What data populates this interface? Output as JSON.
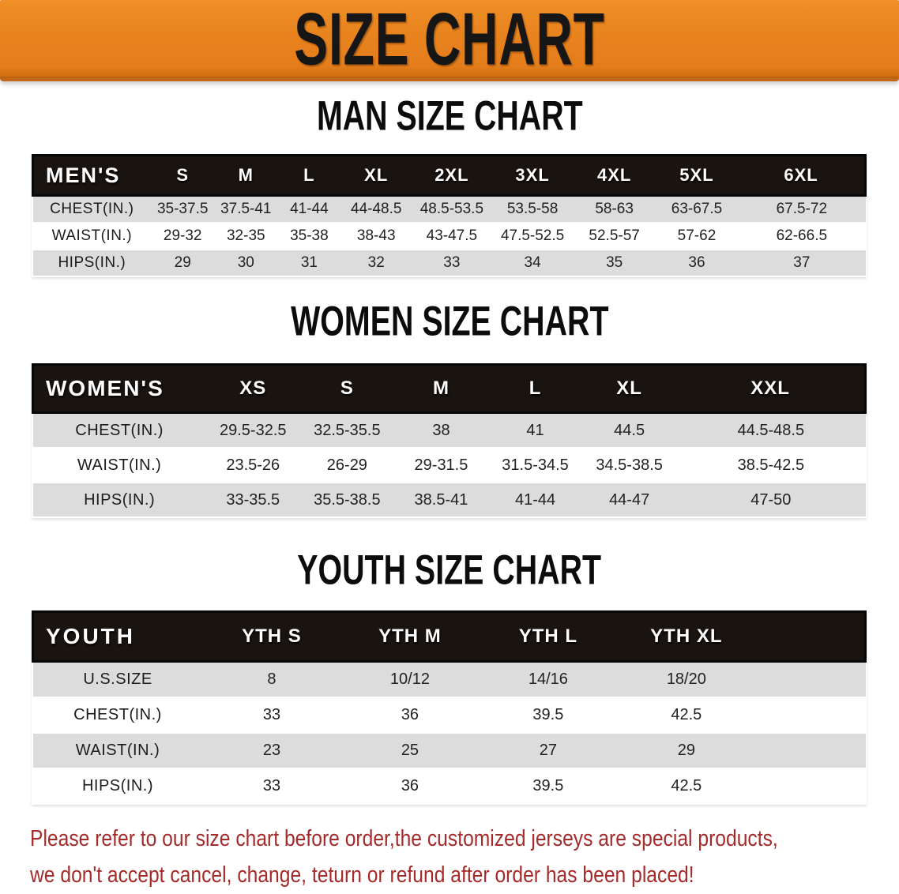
{
  "banner": {
    "title": "SIZE CHART"
  },
  "sections": [
    {
      "heading": "MAN SIZE CHART",
      "table": {
        "header_label": "MEN'S",
        "columns": [
          "S",
          "M",
          "L",
          "XL",
          "2XL",
          "3XL",
          "4XL",
          "5XL",
          "6XL"
        ],
        "rows": [
          {
            "label": "CHEST(IN.)",
            "values": [
              "35-37.5",
              "37.5-41",
              "41-44",
              "44-48.5",
              "48.5-53.5",
              "53.5-58",
              "58-63",
              "63-67.5",
              "67.5-72"
            ]
          },
          {
            "label": "WAIST(IN.)",
            "values": [
              "29-32",
              "32-35",
              "35-38",
              "38-43",
              "43-47.5",
              "47.5-52.5",
              "52.5-57",
              "57-62",
              "62-66.5"
            ]
          },
          {
            "label": "HIPS(IN.)",
            "values": [
              "29",
              "30",
              "31",
              "32",
              "33",
              "34",
              "35",
              "36",
              "37"
            ]
          }
        ]
      }
    },
    {
      "heading": "WOMEN SIZE CHART",
      "table": {
        "header_label": "WOMEN'S",
        "columns": [
          "XS",
          "S",
          "M",
          "L",
          "XL",
          "XXL"
        ],
        "rows": [
          {
            "label": "CHEST(IN.)",
            "values": [
              "29.5-32.5",
              "32.5-35.5",
              "38",
              "41",
              "44.5",
              "44.5-48.5"
            ]
          },
          {
            "label": "WAIST(IN.)",
            "values": [
              "23.5-26",
              "26-29",
              "29-31.5",
              "31.5-34.5",
              "34.5-38.5",
              "38.5-42.5"
            ]
          },
          {
            "label": "HIPS(IN.)",
            "values": [
              "33-35.5",
              "35.5-38.5",
              "38.5-41",
              "41-44",
              "44-47",
              "47-50"
            ]
          }
        ]
      }
    },
    {
      "heading": "YOUTH SIZE CHART",
      "table": {
        "header_label": "YOUTH",
        "columns": [
          "YTH S",
          "YTH M",
          "YTH L",
          "YTH XL"
        ],
        "rows": [
          {
            "label": "U.S.SIZE",
            "values": [
              "8",
              "10/12",
              "14/16",
              "18/20"
            ]
          },
          {
            "label": "CHEST(IN.)",
            "values": [
              "33",
              "36",
              "39.5",
              "42.5"
            ]
          },
          {
            "label": "WAIST(IN.)",
            "values": [
              "23",
              "25",
              "27",
              "29"
            ]
          },
          {
            "label": "HIPS(IN.)",
            "values": [
              "33",
              "36",
              "39.5",
              "42.5"
            ]
          }
        ]
      }
    }
  ],
  "footer_note": {
    "lines": [
      "Please refer to our size chart before order,the customized jerseys are special products,",
      "we don't accept cancel, change, teturn or refund after order has been placed!"
    ]
  },
  "colors": {
    "banner_orange": "#E8821E",
    "header_black": "#1A1410",
    "row_gray": "#DCDCDC",
    "note_red": "#A52A2A"
  }
}
